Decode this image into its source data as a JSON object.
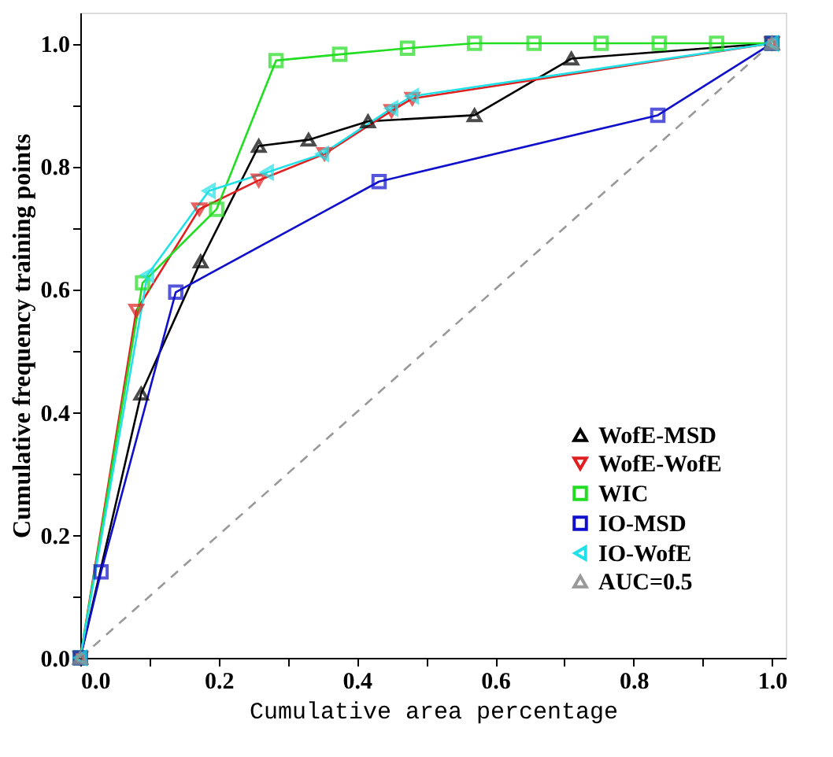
{
  "chart_data": {
    "type": "line",
    "xlabel": "Cumulative area percentage",
    "ylabel": "Cumulative frequency training points",
    "xlim": [
      0,
      1.02
    ],
    "ylim": [
      0,
      1.05
    ],
    "xticks": [
      {
        "value": 0,
        "label": "0.0"
      },
      {
        "value": 0.1,
        "label": null
      },
      0.2,
      {
        "value": 0.3,
        "label": null
      },
      0.4,
      {
        "value": 0.5,
        "label": null
      },
      0.6,
      {
        "value": 0.7,
        "label": null
      },
      0.8,
      {
        "value": 0.9,
        "label": null
      },
      {
        "value": 1,
        "label": "1.0"
      }
    ],
    "yticks": [
      {
        "value": 0,
        "label": "0.0"
      },
      {
        "value": 0.1,
        "label": null
      },
      0.2,
      {
        "value": 0.3,
        "label": null
      },
      0.4,
      {
        "value": 0.5,
        "label": null
      },
      0.6,
      {
        "value": 0.7,
        "label": null
      },
      0.8,
      {
        "value": 0.9,
        "label": null
      },
      {
        "value": 1,
        "label": "1.0"
      }
    ],
    "grid": false,
    "legend": "bottom right",
    "series": [
      {
        "name": "WofE-MSD",
        "color": "#000000",
        "marker": "triangle",
        "x": [
          0,
          0.088,
          0.174,
          0.258,
          0.33,
          0.416,
          0.57,
          0.71,
          1.0
        ],
        "values": [
          0,
          0.43,
          0.645,
          0.833,
          0.843,
          0.873,
          0.883,
          0.975,
          1.0
        ]
      },
      {
        "name": "WofE-WofE",
        "color": "#e02020",
        "marker": "triangle-down",
        "x": [
          0,
          0.081,
          0.172,
          0.258,
          0.353,
          0.45,
          0.48,
          1.0
        ],
        "values": [
          0,
          0.565,
          0.73,
          0.777,
          0.82,
          0.89,
          0.91,
          1.0
        ]
      },
      {
        "name": "WIC",
        "color": "#22dd22",
        "marker": "square",
        "x": [
          0,
          0.09,
          0.197,
          0.283,
          0.375,
          0.473,
          0.57,
          0.656,
          0.753,
          0.837,
          0.92,
          1.0
        ],
        "values": [
          0,
          0.61,
          0.73,
          0.972,
          0.982,
          0.992,
          1.0,
          1.0,
          1.0,
          1.0,
          1.0,
          1.0
        ]
      },
      {
        "name": "IO-MSD",
        "color": "#1010cc",
        "marker": "square",
        "x": [
          0,
          0.03,
          0.138,
          0.432,
          0.835,
          1.0
        ],
        "values": [
          0,
          0.14,
          0.595,
          0.775,
          0.883,
          1.0
        ]
      },
      {
        "name": "IO-WofE",
        "color": "#22e0e8",
        "marker": "triangle-left",
        "x": [
          0,
          0.097,
          0.186,
          0.27,
          0.35,
          0.45,
          0.48,
          1.0
        ],
        "values": [
          0,
          0.623,
          0.76,
          0.79,
          0.82,
          0.894,
          0.914,
          1.0
        ]
      },
      {
        "name": "AUC=0.5",
        "color": "#999999",
        "marker": "triangle",
        "line_style": "dashed",
        "x": [
          0,
          1.0
        ],
        "values": [
          0,
          1.0
        ]
      }
    ]
  }
}
